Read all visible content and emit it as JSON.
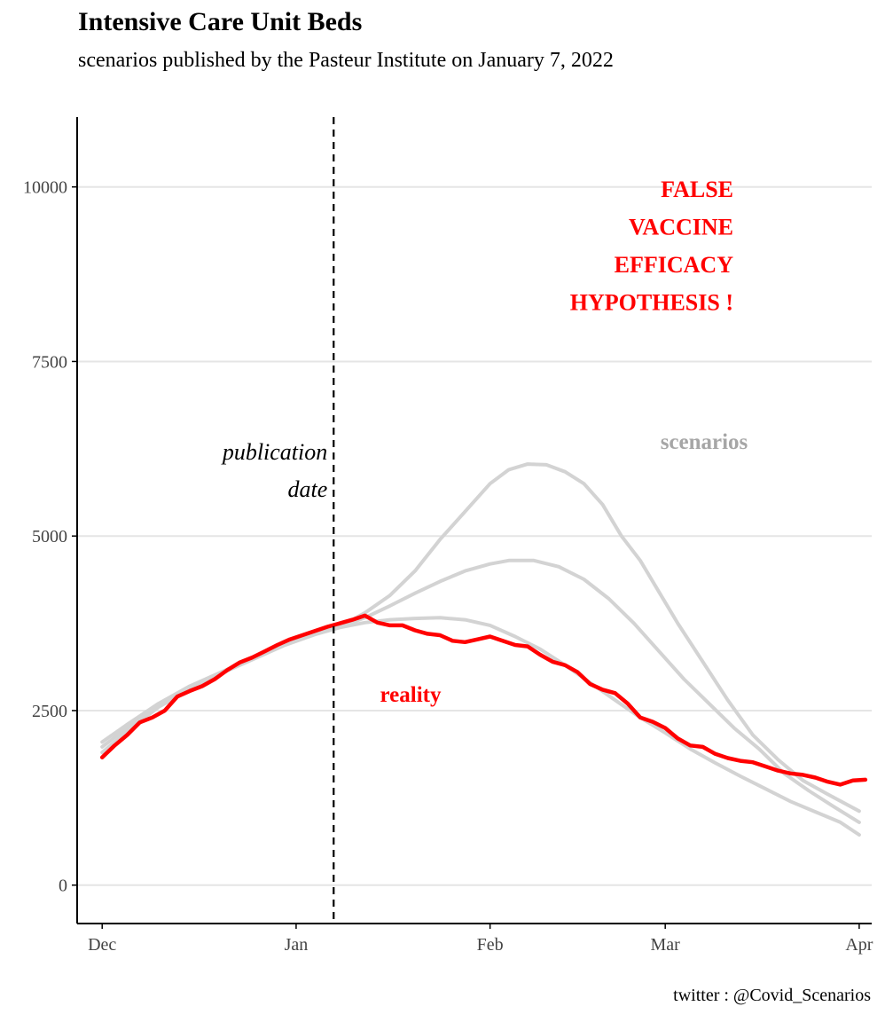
{
  "header": {
    "title": "Intensive Care Unit Beds",
    "subtitle": "scenarios published by the Pasteur Institute on January 7, 2022"
  },
  "footer": {
    "caption": "twitter : @Covid_Scenarios"
  },
  "colors": {
    "reality": "#ff0000",
    "scenario": "#d3d3d3",
    "grid": "#e5e5e5",
    "axis": "#000000",
    "scenario_label": "#a6a6a6"
  },
  "chart_data": {
    "type": "line",
    "title": "",
    "xlabel": "",
    "ylabel": "",
    "x_axis": {
      "type": "date",
      "range": [
        "2021-11-27",
        "2022-04-03"
      ],
      "ticks": [
        {
          "date": "2021-12-01",
          "label": "Dec"
        },
        {
          "date": "2022-01-01",
          "label": "Jan"
        },
        {
          "date": "2022-02-01",
          "label": "Feb"
        },
        {
          "date": "2022-03-01",
          "label": "Mar"
        },
        {
          "date": "2022-04-01",
          "label": "Apr"
        }
      ]
    },
    "y_axis": {
      "range": [
        -550,
        11000
      ],
      "ticks": [
        0,
        2500,
        5000,
        7500,
        10000
      ]
    },
    "grid": "horizontal major lines only",
    "publication_date": "2022-01-07",
    "series": [
      {
        "name": "reality",
        "role": "reality",
        "points": [
          [
            "2021-12-01",
            1830
          ],
          [
            "2021-12-03",
            2000
          ],
          [
            "2021-12-05",
            2150
          ],
          [
            "2021-12-07",
            2330
          ],
          [
            "2021-12-09",
            2400
          ],
          [
            "2021-12-11",
            2500
          ],
          [
            "2021-12-13",
            2700
          ],
          [
            "2021-12-15",
            2780
          ],
          [
            "2021-12-17",
            2850
          ],
          [
            "2021-12-19",
            2950
          ],
          [
            "2021-12-21",
            3080
          ],
          [
            "2021-12-23",
            3190
          ],
          [
            "2021-12-25",
            3260
          ],
          [
            "2021-12-27",
            3350
          ],
          [
            "2021-12-29",
            3440
          ],
          [
            "2021-12-31",
            3520
          ],
          [
            "2022-01-02",
            3580
          ],
          [
            "2022-01-04",
            3640
          ],
          [
            "2022-01-06",
            3700
          ],
          [
            "2022-01-08",
            3750
          ],
          [
            "2022-01-10",
            3800
          ],
          [
            "2022-01-12",
            3860
          ],
          [
            "2022-01-14",
            3760
          ],
          [
            "2022-01-16",
            3720
          ],
          [
            "2022-01-18",
            3720
          ],
          [
            "2022-01-20",
            3650
          ],
          [
            "2022-01-22",
            3600
          ],
          [
            "2022-01-24",
            3580
          ],
          [
            "2022-01-26",
            3500
          ],
          [
            "2022-01-28",
            3480
          ],
          [
            "2022-01-30",
            3520
          ],
          [
            "2022-02-01",
            3560
          ],
          [
            "2022-02-03",
            3500
          ],
          [
            "2022-02-05",
            3440
          ],
          [
            "2022-02-07",
            3420
          ],
          [
            "2022-02-09",
            3300
          ],
          [
            "2022-02-11",
            3200
          ],
          [
            "2022-02-13",
            3150
          ],
          [
            "2022-02-15",
            3050
          ],
          [
            "2022-02-17",
            2880
          ],
          [
            "2022-02-19",
            2800
          ],
          [
            "2022-02-21",
            2750
          ],
          [
            "2022-02-23",
            2600
          ],
          [
            "2022-02-25",
            2400
          ],
          [
            "2022-02-27",
            2340
          ],
          [
            "2022-03-01",
            2250
          ],
          [
            "2022-03-03",
            2100
          ],
          [
            "2022-03-05",
            2000
          ],
          [
            "2022-03-07",
            1980
          ],
          [
            "2022-03-09",
            1880
          ],
          [
            "2022-03-11",
            1820
          ],
          [
            "2022-03-13",
            1780
          ],
          [
            "2022-03-15",
            1760
          ],
          [
            "2022-03-17",
            1700
          ],
          [
            "2022-03-19",
            1640
          ],
          [
            "2022-03-21",
            1600
          ],
          [
            "2022-03-23",
            1580
          ],
          [
            "2022-03-25",
            1540
          ],
          [
            "2022-03-27",
            1480
          ],
          [
            "2022-03-29",
            1440
          ],
          [
            "2022-03-31",
            1500
          ],
          [
            "2022-04-02",
            1510
          ]
        ]
      },
      {
        "name": "scenarios",
        "role": "scenario",
        "points": [
          [
            "2021-12-01",
            2050
          ],
          [
            "2021-12-05",
            2300
          ],
          [
            "2021-12-10",
            2600
          ],
          [
            "2021-12-15",
            2850
          ],
          [
            "2021-12-20",
            3050
          ],
          [
            "2021-12-25",
            3250
          ],
          [
            "2021-12-30",
            3450
          ],
          [
            "2022-01-04",
            3600
          ],
          [
            "2022-01-08",
            3700
          ],
          [
            "2022-01-12",
            3900
          ],
          [
            "2022-01-16",
            4150
          ],
          [
            "2022-01-20",
            4500
          ],
          [
            "2022-01-24",
            4950
          ],
          [
            "2022-01-28",
            5350
          ],
          [
            "2022-02-01",
            5750
          ],
          [
            "2022-02-04",
            5950
          ],
          [
            "2022-02-07",
            6030
          ],
          [
            "2022-02-10",
            6020
          ],
          [
            "2022-02-13",
            5920
          ],
          [
            "2022-02-16",
            5750
          ],
          [
            "2022-02-19",
            5450
          ],
          [
            "2022-02-22",
            5000
          ],
          [
            "2022-02-25",
            4650
          ],
          [
            "2022-02-28",
            4200
          ],
          [
            "2022-03-03",
            3750
          ],
          [
            "2022-03-07",
            3200
          ],
          [
            "2022-03-11",
            2650
          ],
          [
            "2022-03-15",
            2150
          ],
          [
            "2022-03-19",
            1800
          ],
          [
            "2022-03-23",
            1500
          ],
          [
            "2022-03-27",
            1300
          ],
          [
            "2022-04-01",
            1060
          ]
        ]
      },
      {
        "name": "scenarios",
        "role": "scenario",
        "points": [
          [
            "2021-12-01",
            1980
          ],
          [
            "2021-12-05",
            2250
          ],
          [
            "2021-12-10",
            2580
          ],
          [
            "2021-12-15",
            2830
          ],
          [
            "2021-12-20",
            3040
          ],
          [
            "2021-12-25",
            3240
          ],
          [
            "2021-12-30",
            3440
          ],
          [
            "2022-01-04",
            3600
          ],
          [
            "2022-01-08",
            3700
          ],
          [
            "2022-01-12",
            3830
          ],
          [
            "2022-01-16",
            4000
          ],
          [
            "2022-01-20",
            4180
          ],
          [
            "2022-01-24",
            4350
          ],
          [
            "2022-01-28",
            4500
          ],
          [
            "2022-02-01",
            4600
          ],
          [
            "2022-02-04",
            4650
          ],
          [
            "2022-02-08",
            4650
          ],
          [
            "2022-02-12",
            4560
          ],
          [
            "2022-02-16",
            4380
          ],
          [
            "2022-02-20",
            4100
          ],
          [
            "2022-02-24",
            3750
          ],
          [
            "2022-02-28",
            3350
          ],
          [
            "2022-03-04",
            2950
          ],
          [
            "2022-03-08",
            2600
          ],
          [
            "2022-03-12",
            2250
          ],
          [
            "2022-03-16",
            1950
          ],
          [
            "2022-03-20",
            1600
          ],
          [
            "2022-03-24",
            1350
          ],
          [
            "2022-03-28",
            1120
          ],
          [
            "2022-04-01",
            900
          ]
        ]
      },
      {
        "name": "scenarios",
        "role": "scenario",
        "points": [
          [
            "2021-12-01",
            1900
          ],
          [
            "2021-12-05",
            2200
          ],
          [
            "2021-12-10",
            2550
          ],
          [
            "2021-12-15",
            2800
          ],
          [
            "2021-12-20",
            3030
          ],
          [
            "2021-12-25",
            3230
          ],
          [
            "2021-12-30",
            3430
          ],
          [
            "2022-01-04",
            3590
          ],
          [
            "2022-01-08",
            3690
          ],
          [
            "2022-01-12",
            3760
          ],
          [
            "2022-01-16",
            3800
          ],
          [
            "2022-01-20",
            3820
          ],
          [
            "2022-01-24",
            3830
          ],
          [
            "2022-01-28",
            3800
          ],
          [
            "2022-02-01",
            3720
          ],
          [
            "2022-02-05",
            3560
          ],
          [
            "2022-02-09",
            3380
          ],
          [
            "2022-02-13",
            3150
          ],
          [
            "2022-02-17",
            2900
          ],
          [
            "2022-02-21",
            2650
          ],
          [
            "2022-02-25",
            2400
          ],
          [
            "2022-03-01",
            2180
          ],
          [
            "2022-03-05",
            1950
          ],
          [
            "2022-03-09",
            1750
          ],
          [
            "2022-03-13",
            1560
          ],
          [
            "2022-03-17",
            1380
          ],
          [
            "2022-03-21",
            1200
          ],
          [
            "2022-03-25",
            1050
          ],
          [
            "2022-03-29",
            900
          ],
          [
            "2022-04-01",
            720
          ]
        ]
      }
    ],
    "annotations": {
      "publication": [
        "publication",
        "date"
      ],
      "false_hypothesis": [
        "FALSE",
        "VACCINE",
        "EFFICACY",
        "HYPOTHESIS !"
      ],
      "scenarios_label": "scenarios",
      "reality_label": "reality"
    }
  }
}
